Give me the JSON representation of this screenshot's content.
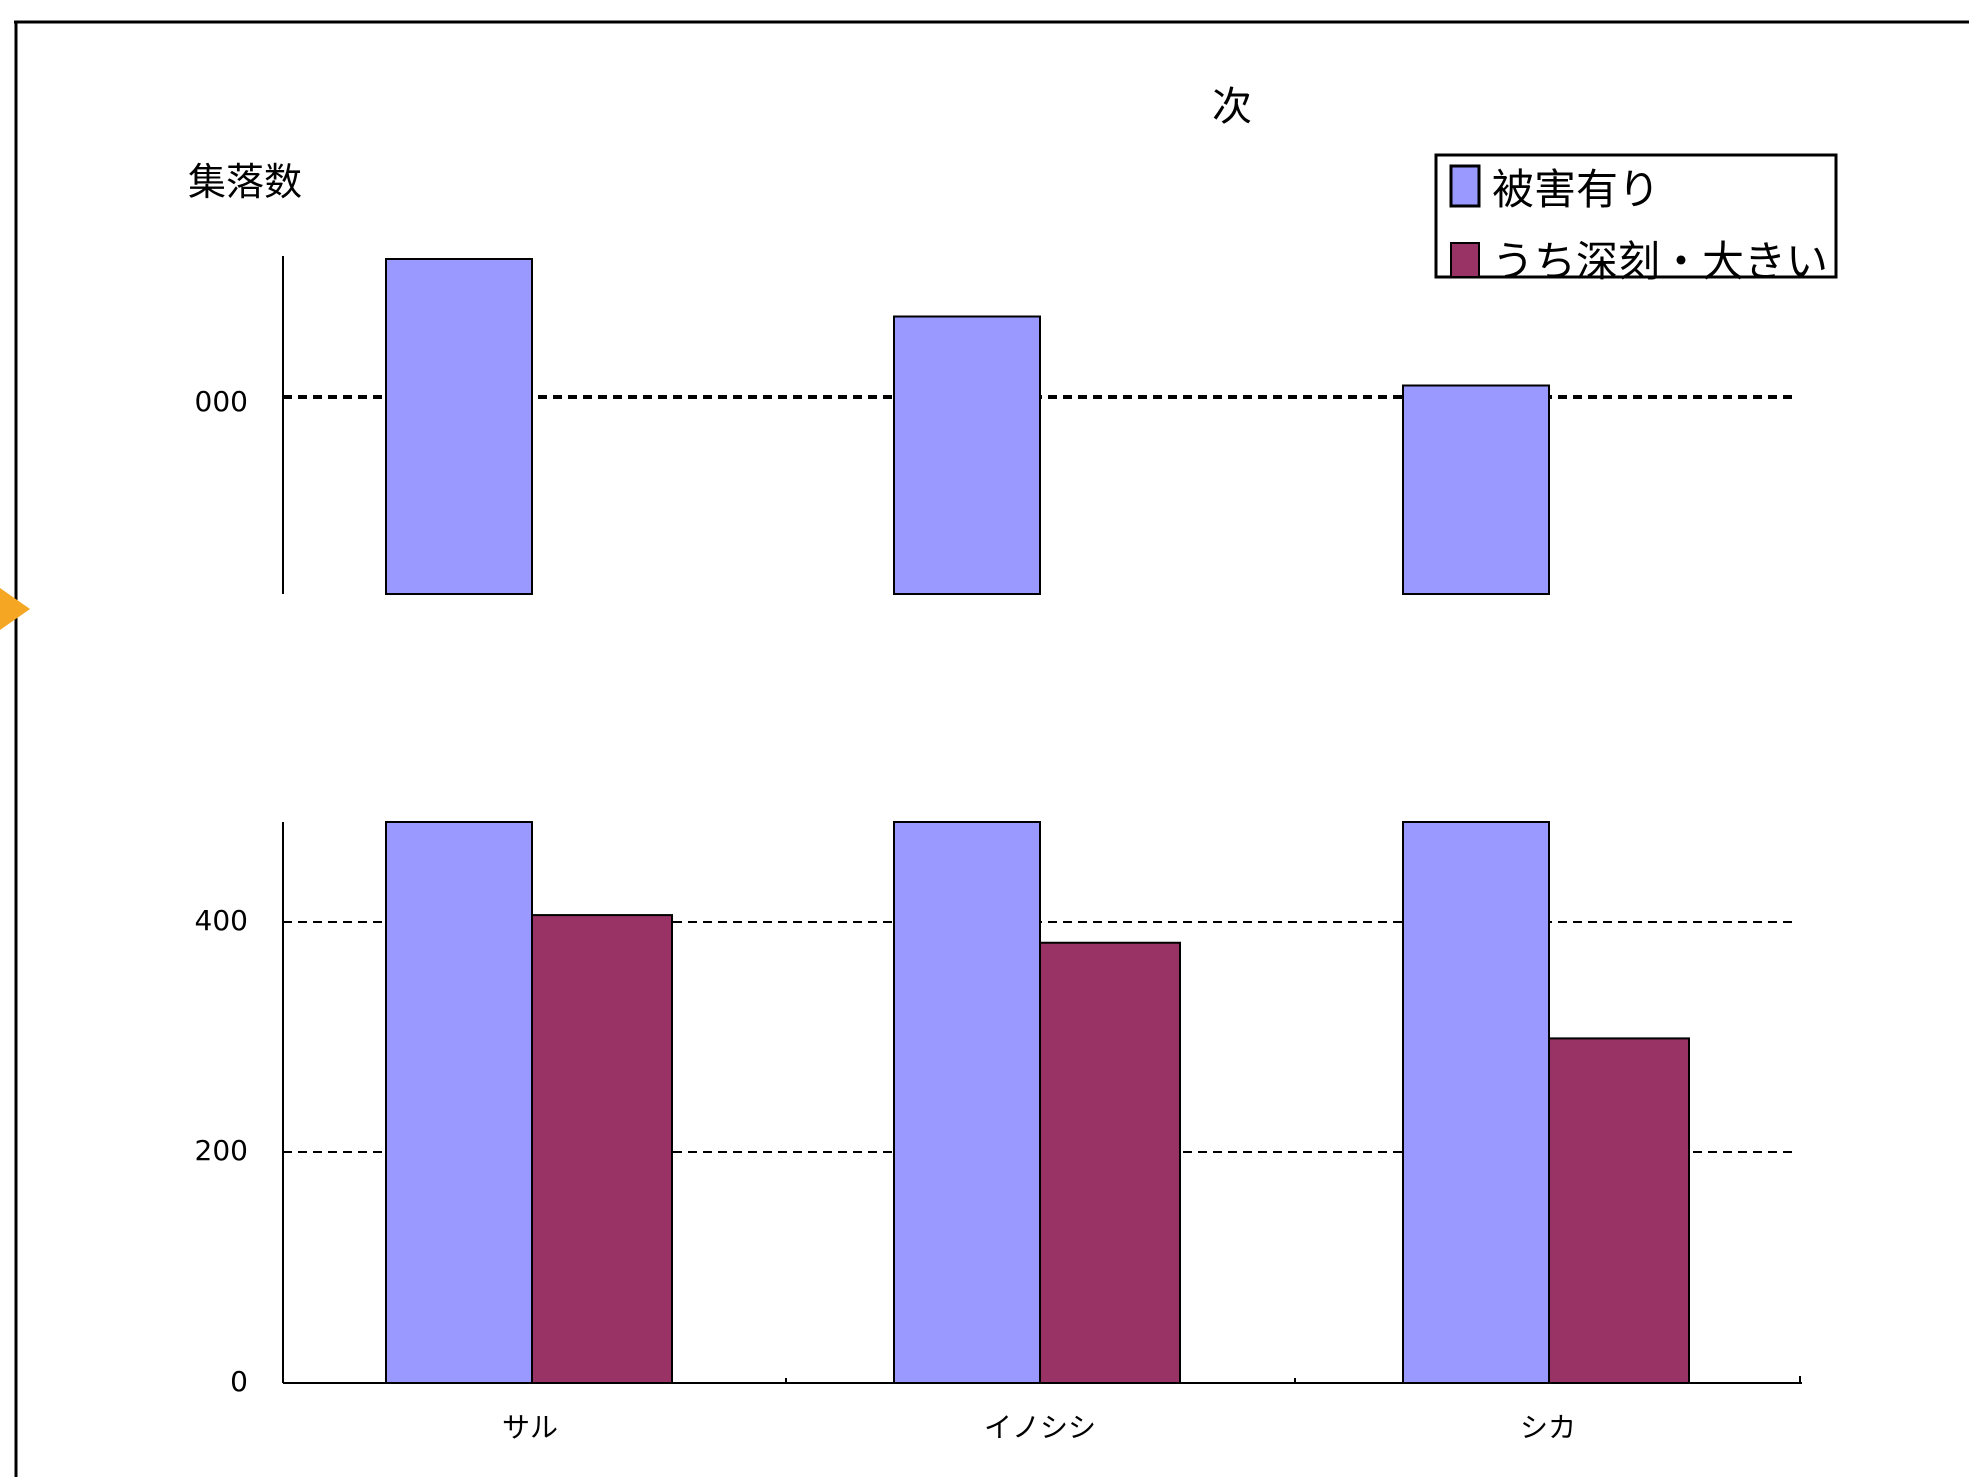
{
  "chart_data": {
    "type": "bar",
    "title": "次",
    "ylabel": "集落数",
    "xlabel": "",
    "categories": [
      "サル",
      "イノシシ",
      "シカ"
    ],
    "series": [
      {
        "name": "被害有り",
        "color": "#9999ff",
        "values": [
          1920,
          1870,
          1810
        ]
      },
      {
        "name": "うち深刻・大きい",
        "color": "#993366",
        "values": [
          406,
          382,
          299
        ]
      }
    ],
    "lower_ticks": [
      "0",
      "200",
      "400"
    ],
    "upper_tick_visible": "000",
    "grid": true,
    "legend_position": "top-right"
  }
}
